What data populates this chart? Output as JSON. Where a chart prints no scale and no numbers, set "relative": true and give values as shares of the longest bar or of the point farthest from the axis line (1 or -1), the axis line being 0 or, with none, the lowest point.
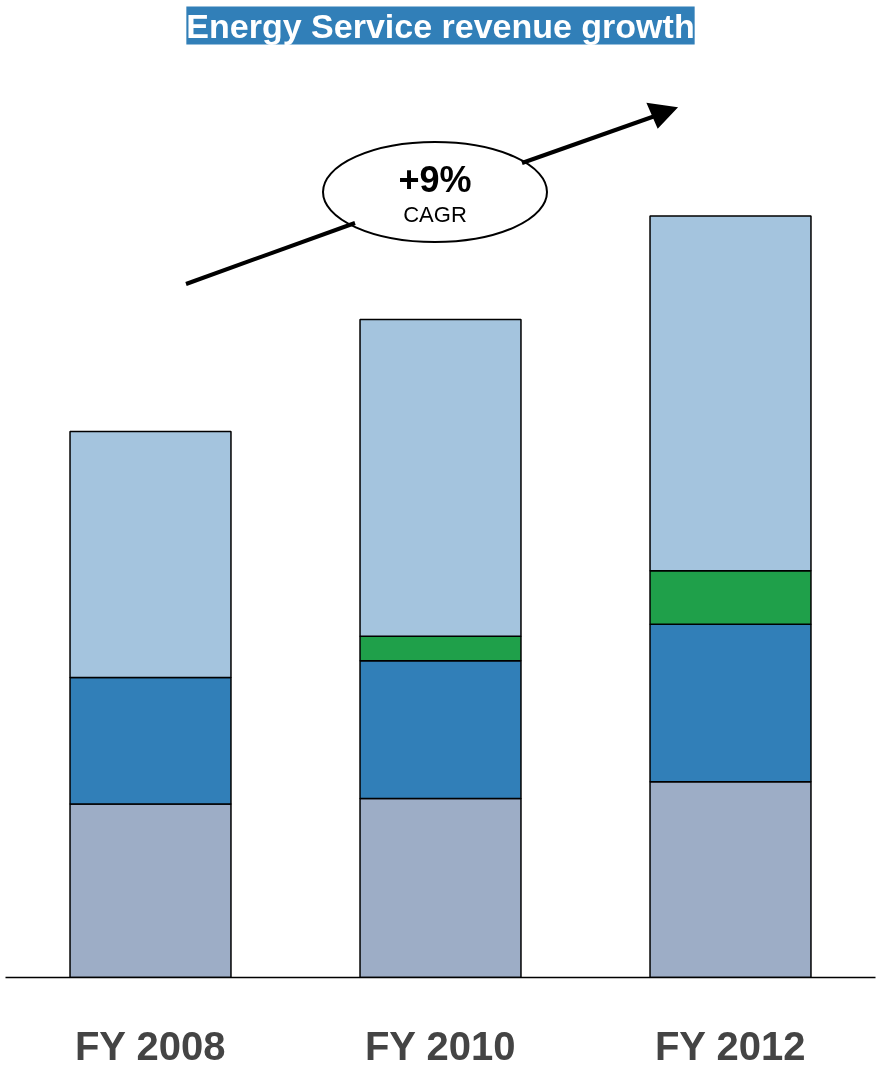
{
  "chart_data": {
    "type": "bar",
    "title": "Energy Service revenue growth",
    "categories": [
      "FY 2008",
      "FY 2010",
      "FY 2012"
    ],
    "stacked": true,
    "relative": true,
    "series": [
      {
        "color": "#9dadc6",
        "values": [
          0.228,
          0.235,
          0.257
        ]
      },
      {
        "color": "#317fb8",
        "values": [
          0.166,
          0.181,
          0.207
        ]
      },
      {
        "color": "#1fa04a",
        "values": [
          0,
          0.032,
          0.07
        ]
      },
      {
        "color": "#a4c4de",
        "values": [
          0.323,
          0.416,
          0.466
        ]
      }
    ],
    "annotations": [
      "+9%",
      "CAGR"
    ],
    "grid": false
  }
}
